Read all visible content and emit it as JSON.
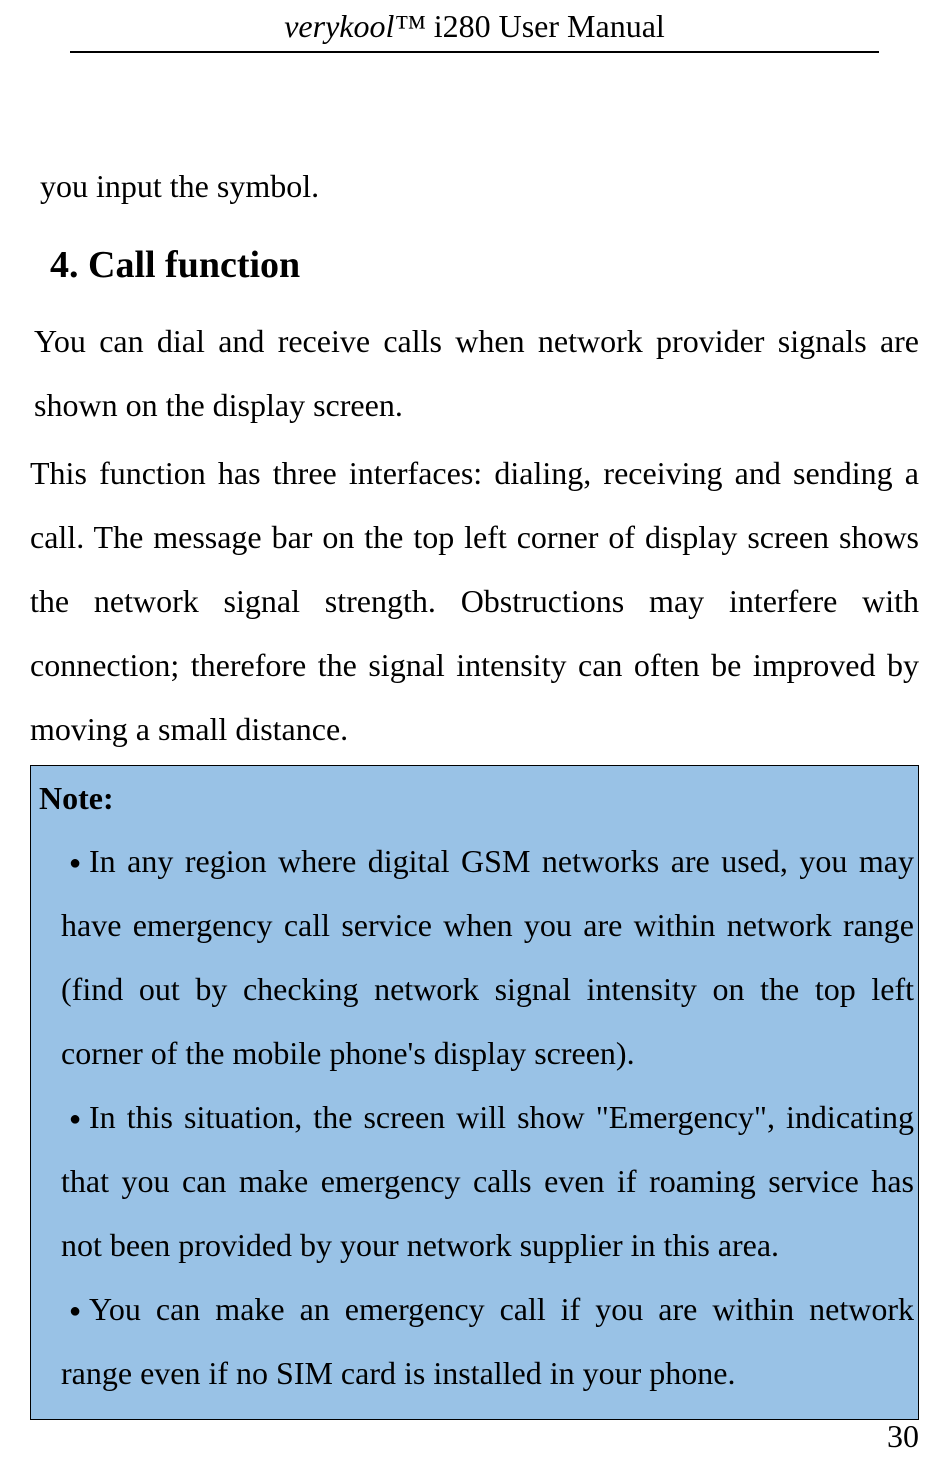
{
  "header": {
    "brand": "verykool™",
    "title_rest": " i280 User Manual"
  },
  "content": {
    "intro_line": "you input the symbol.",
    "section_heading": "4. Call function",
    "para1": "You can dial and receive calls when network provider signals are shown on the display screen.",
    "para2": "This function has three interfaces: dialing, receiving and sending a call. The message bar on the top left corner of display screen shows the network signal strength. Obstructions may interfere with connection; therefore the signal intensity can often be improved by moving a small distance."
  },
  "note": {
    "label": "Note:",
    "items": [
      "In any region where digital GSM networks are used, you may have emergency call service when you are within network range (find out by checking network signal intensity on the top left corner of the mobile phone's display screen).",
      "In this situation, the screen will show \"Emergency\", indicating that you can make emergency calls even if roaming service has not been provided by your network supplier in this area.",
      "You can make an emergency call if you are within network range even if no SIM card is installed in your phone."
    ]
  },
  "footer": {
    "page_number": "30"
  },
  "colors": {
    "note_bg": "#99c2e6",
    "text": "#000000",
    "page_bg": "#ffffff",
    "rule": "#000000"
  },
  "typography": {
    "body_fontsize_pt": 24,
    "heading_fontsize_pt": 28,
    "font_family": "Times New Roman"
  }
}
